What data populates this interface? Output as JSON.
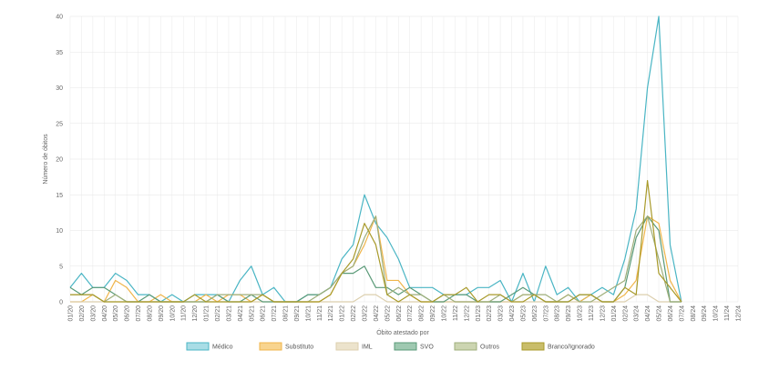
{
  "chart_data": {
    "type": "line",
    "xlabel": "Óbito atestado por",
    "ylabel": "Número de óbitos",
    "ylim": [
      0,
      40
    ],
    "yticks": [
      "0",
      "5",
      "10",
      "15",
      "20",
      "25",
      "30",
      "35",
      "40"
    ],
    "grid": true,
    "legend_position": "bottom",
    "categories": [
      "01/20",
      "02/20",
      "03/20",
      "04/20",
      "05/20",
      "06/20",
      "07/20",
      "08/20",
      "09/20",
      "10/20",
      "11/20",
      "12/20",
      "01/21",
      "02/21",
      "03/21",
      "04/21",
      "05/21",
      "06/21",
      "07/21",
      "08/21",
      "09/21",
      "10/21",
      "11/21",
      "12/21",
      "01/22",
      "02/22",
      "03/22",
      "04/22",
      "05/22",
      "06/22",
      "07/22",
      "08/22",
      "09/22",
      "10/22",
      "11/22",
      "12/22",
      "01/23",
      "02/23",
      "03/23",
      "04/23",
      "05/23",
      "06/23",
      "07/23",
      "08/23",
      "09/23",
      "10/23",
      "11/23",
      "12/23",
      "01/24",
      "02/24",
      "03/24",
      "04/24",
      "05/24",
      "06/24",
      "07/24",
      "08/24",
      "09/24",
      "10/24",
      "11/24",
      "12/24"
    ],
    "series": [
      {
        "name": "Médico",
        "color": "#4ab5c4",
        "fill": "#a9dde6",
        "values": [
          2,
          4,
          2,
          2,
          4,
          3,
          1,
          1,
          0,
          1,
          0,
          1,
          1,
          1,
          0,
          3,
          5,
          1,
          2,
          0,
          0,
          1,
          1,
          2,
          6,
          8,
          15,
          11,
          9,
          6,
          2,
          2,
          2,
          1,
          1,
          1,
          2,
          2,
          3,
          0,
          4,
          0,
          5,
          1,
          2,
          0,
          1,
          2,
          1,
          6,
          13,
          30,
          40,
          8,
          0,
          null,
          null,
          null,
          null,
          null
        ]
      },
      {
        "name": "Substituto",
        "color": "#f0b54a",
        "fill": "#f8d48f",
        "values": [
          0,
          0,
          1,
          0,
          3,
          2,
          0,
          0,
          1,
          0,
          0,
          0,
          1,
          0,
          1,
          1,
          0,
          1,
          0,
          0,
          0,
          0,
          0,
          1,
          4,
          5,
          8,
          12,
          3,
          3,
          1,
          0,
          0,
          0,
          0,
          0,
          0,
          0,
          0,
          0,
          1,
          1,
          0,
          0,
          1,
          0,
          1,
          0,
          0,
          1,
          3,
          12,
          11,
          3,
          0,
          null,
          null,
          null,
          null,
          null
        ]
      },
      {
        "name": "IML",
        "color": "#dccfae",
        "fill": "#ece3cc",
        "values": [
          0,
          0,
          0,
          0,
          0,
          0,
          0,
          0,
          0,
          0,
          0,
          0,
          0,
          0,
          0,
          0,
          0,
          0,
          0,
          0,
          0,
          0,
          0,
          0,
          0,
          0,
          1,
          1,
          0,
          0,
          0,
          0,
          0,
          0,
          0,
          0,
          0,
          0,
          0,
          0,
          0,
          0,
          0,
          0,
          0,
          0,
          0,
          0,
          0,
          0,
          1,
          1,
          0,
          0,
          0,
          null,
          null,
          null,
          null,
          null
        ]
      },
      {
        "name": "SVO",
        "color": "#5a9a78",
        "fill": "#9fc9b1",
        "values": [
          2,
          1,
          2,
          2,
          1,
          0,
          0,
          1,
          0,
          0,
          0,
          0,
          0,
          1,
          0,
          0,
          1,
          0,
          0,
          0,
          0,
          1,
          1,
          2,
          4,
          4,
          5,
          2,
          2,
          1,
          2,
          1,
          0,
          0,
          1,
          1,
          0,
          0,
          0,
          1,
          2,
          1,
          0,
          0,
          0,
          1,
          1,
          0,
          0,
          2,
          9,
          12,
          10,
          0,
          0,
          null,
          null,
          null,
          null,
          null
        ]
      },
      {
        "name": "Outros",
        "color": "#9eae7a",
        "fill": "#ccd5b1",
        "values": [
          1,
          1,
          1,
          0,
          1,
          0,
          0,
          0,
          0,
          0,
          0,
          0,
          0,
          1,
          1,
          1,
          1,
          1,
          0,
          0,
          0,
          0,
          1,
          2,
          4,
          5,
          9,
          12,
          1,
          2,
          1,
          1,
          0,
          1,
          0,
          0,
          0,
          0,
          1,
          0,
          1,
          1,
          1,
          0,
          1,
          0,
          0,
          1,
          2,
          3,
          10,
          12,
          6,
          0,
          0,
          null,
          null,
          null,
          null,
          null
        ]
      },
      {
        "name": "Branco/Ignorado",
        "color": "#a89a2a",
        "fill": "#c9bd6a",
        "values": [
          1,
          1,
          1,
          0,
          0,
          0,
          0,
          0,
          0,
          0,
          0,
          1,
          0,
          0,
          0,
          0,
          0,
          1,
          0,
          0,
          0,
          0,
          0,
          1,
          4,
          6,
          11,
          8,
          1,
          0,
          1,
          0,
          0,
          1,
          1,
          2,
          0,
          1,
          1,
          0,
          0,
          1,
          0,
          0,
          0,
          1,
          1,
          0,
          0,
          2,
          1,
          17,
          4,
          2,
          0,
          null,
          null,
          null,
          null,
          null
        ]
      }
    ]
  }
}
